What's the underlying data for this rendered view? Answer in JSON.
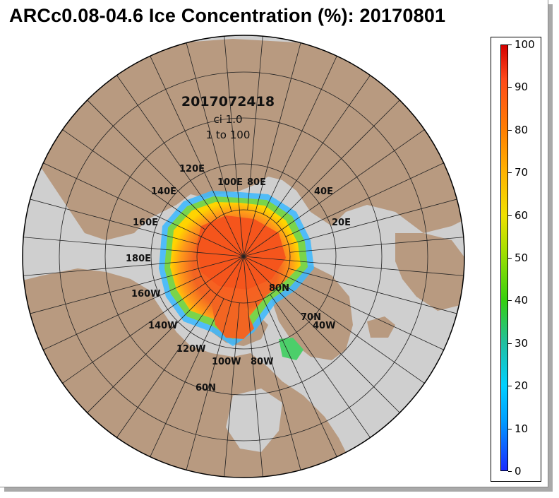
{
  "title": "ARCc0.08-04.6 Ice Concentration (%): 20170801",
  "annotation": {
    "date": "2017072418",
    "contour_interval": "ci 1.0",
    "range": "1 to 100"
  },
  "longitude_labels": [
    "120E",
    "100E",
    "80E",
    "140E",
    "40E",
    "160E",
    "20E",
    "180E",
    "160W",
    "140W",
    "120W",
    "100W",
    "80W",
    "40W"
  ],
  "latitude_labels": [
    "80N",
    "70N",
    "60N"
  ],
  "colorbar": {
    "min": 0,
    "max": 100,
    "tick_labels": [
      "100",
      "90",
      "80",
      "70",
      "60",
      "50",
      "40",
      "30",
      "20",
      "10",
      "0"
    ]
  },
  "colors": {
    "land": "#b89a80",
    "ocean": "#cfcfcf",
    "ice_core": "#f26522",
    "ice_edge": "#1fa3ff",
    "grid": "#222222"
  }
}
